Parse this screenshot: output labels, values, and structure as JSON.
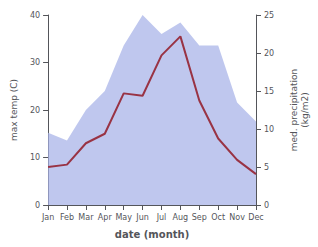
{
  "chart_data": {
    "type": "line",
    "xlabel": "date (month)",
    "ylabel": "max temp (C)",
    "y2label": "med. precipitation\n(kg/m2)",
    "categories": [
      "Jan",
      "Feb",
      "Mar",
      "Apr",
      "May",
      "Jun",
      "Jul",
      "Aug",
      "Sep",
      "Oct",
      "Nov",
      "Dec"
    ],
    "series": [
      {
        "type": "area",
        "axis": "y2",
        "color": "#aab4e8",
        "values": [
          9.5,
          8.5,
          12.5,
          15.0,
          21.0,
          25.0,
          22.5,
          24.0,
          21.0,
          21.0,
          13.5,
          11.0
        ]
      },
      {
        "type": "line",
        "color": "#993344",
        "values": [
          8.0,
          8.5,
          13.0,
          15.0,
          23.5,
          23.0,
          31.5,
          35.5,
          22.0,
          14.0,
          9.5,
          6.5
        ]
      }
    ],
    "ylim": [
      0,
      40
    ],
    "yticks": [
      0,
      10,
      20,
      30,
      40
    ],
    "y2lim": [
      0,
      25
    ],
    "y2ticks": [
      0,
      5,
      10,
      15,
      20,
      25
    ],
    "grid": false
  }
}
